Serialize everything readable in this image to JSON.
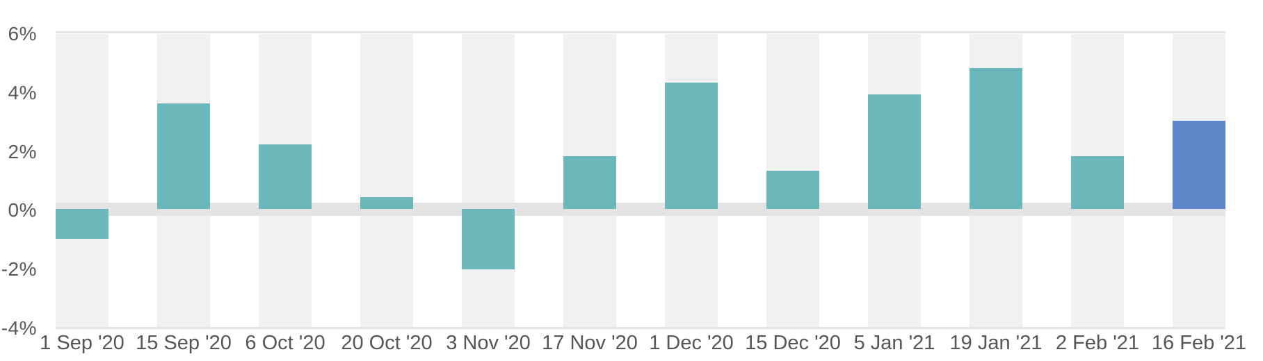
{
  "chart_data": {
    "type": "bar",
    "title": "",
    "xlabel": "",
    "ylabel": "",
    "unit": "%",
    "categories": [
      "1 Sep '20",
      "15 Sep '20",
      "6 Oct '20",
      "20 Oct '20",
      "3 Nov '20",
      "17 Nov '20",
      "1 Dec '20",
      "15 Dec '20",
      "5 Jan '21",
      "19 Jan '21",
      "2 Feb '21",
      "16 Feb '21"
    ],
    "values": [
      -1.0,
      3.6,
      2.2,
      0.4,
      -2.05,
      1.8,
      4.3,
      1.3,
      3.9,
      4.8,
      1.8,
      3.0
    ],
    "ylim": [
      -4,
      6
    ],
    "yticks": [
      6,
      4,
      2,
      0,
      -2,
      -4
    ],
    "ytick_labels": [
      "6%",
      "4%",
      "2%",
      "0%",
      "-2%",
      "-4%"
    ],
    "legend": "none",
    "grid": "horizontal lines at top (6%) and bottom (-4%) only; thick gray band at 0%; light gray vertical stripe behind every bar",
    "highlight_index": 11,
    "colors": {
      "bar_default": "#6bb7b9",
      "bar_highlight": "#5c88ca",
      "column_stripe": "#f1f1f2",
      "zero_band": "#e3e3e4",
      "gridline": "#e4e4e5",
      "axis_text": "#58595b",
      "background": "#ffffff"
    }
  }
}
